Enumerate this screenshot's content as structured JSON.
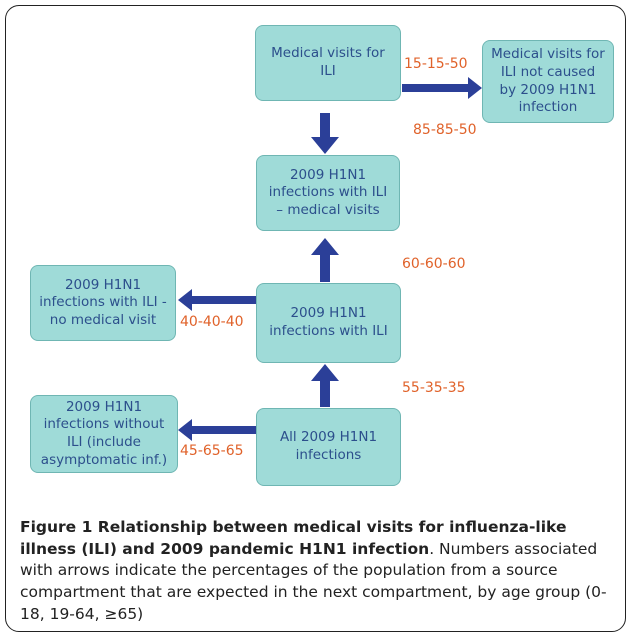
{
  "nodes": [
    {
      "label": "Medical visits for ILI"
    },
    {
      "label": "Medical visits for ILI not caused by 2009 H1N1 infection"
    },
    {
      "label": "2009 H1N1 infections with ILI – medical visits"
    },
    {
      "label": "2009 H1N1 infections with ILI - no medical visit"
    },
    {
      "label": "2009 H1N1 infections with ILI"
    },
    {
      "label": "2009 H1N1 infections without ILI (include asymptomatic inf.)"
    },
    {
      "label": "All 2009 H1N1 infections"
    }
  ],
  "edges": [
    {
      "label": "15-15-50"
    },
    {
      "label": "85-85-50"
    },
    {
      "label": "60-60-60"
    },
    {
      "label": "40-40-40"
    },
    {
      "label": "55-35-35"
    },
    {
      "label": "45-65-65"
    }
  ],
  "caption": {
    "title": "Figure 1 Relationship between medical visits for influenza-like illness (ILI) and 2009 pandemic H1N1 infection",
    "text": ". Numbers associated with arrows indicate the percentages of the population from a source compartment that are expected in the next compartment, by age group (0-18, 19-64, ≥65)"
  }
}
